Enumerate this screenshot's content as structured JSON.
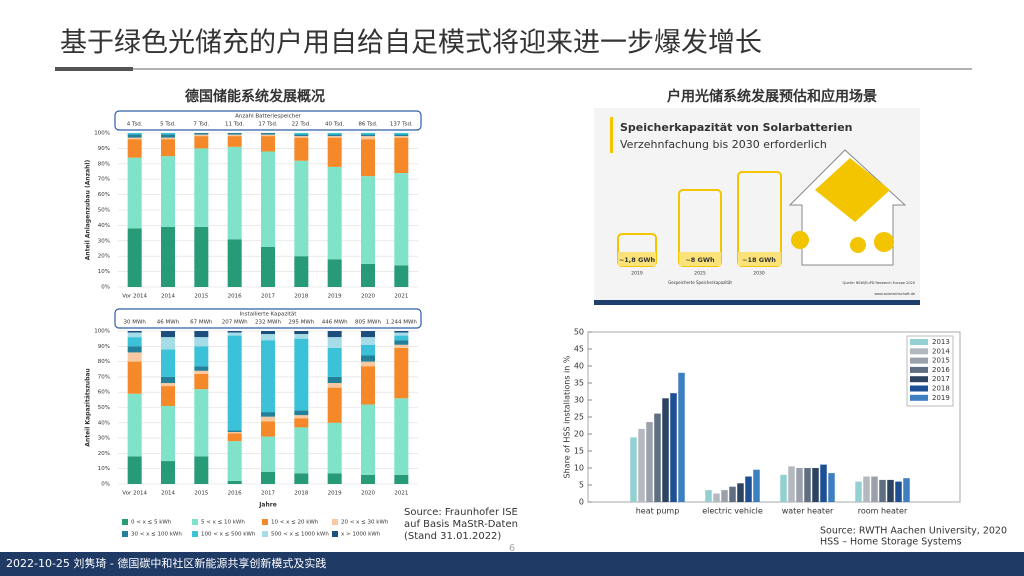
{
  "title": "基于绿色光储充的户用自给自足模式将迎来进一步爆发增长",
  "left_heading": "德国储能系统发展概况",
  "right_heading": "户用光储系统发展预估和应用场景",
  "left_source": [
    "Source: Fraunhofer ISE",
    "auf Basis MaStR-Daten",
    "(Stand 31.01.2022)"
  ],
  "right_source": [
    "Source: RWTH Aachen University, 2020",
    "HSS – Home Storage Systems"
  ],
  "footer": "2022-10-25 刘隽琦 - 德国碳中和社区新能源共享创新模式及实践",
  "page_number": "6",
  "picture": {
    "title": "Speicherkapazität von Solarbatterien",
    "subtitle": "Verzehnfachung bis 2030 erforderlich",
    "batteries": [
      {
        "label": "~1,8 GWh",
        "year": "2019"
      },
      {
        "label": "~8 GWh",
        "year": "2025"
      },
      {
        "label": "~18 GWh",
        "year": "2030"
      }
    ],
    "caption": "Gespeicherte Speicherkapazität",
    "quelle": "Quelle: BSW/EuPD Research Europe 2020",
    "website": "www.solarwirtschaft.de"
  },
  "chart_data": [
    {
      "type": "stacked_bar",
      "y_label": "Anteil Anlagenzubau (Anzahl)",
      "annotation_title": "Anzahl Batteriespeicher",
      "annotations": [
        "4 Tsd.",
        "5 Tsd.",
        "7 Tsd.",
        "11 Tsd.",
        "17 Tsd.",
        "22 Tsd.",
        "40 Tsd.",
        "86 Tsd.",
        "137 Tsd."
      ],
      "categories": [
        "Vor 2014",
        "2014",
        "2015",
        "2016",
        "2017",
        "2018",
        "2019",
        "2020",
        "2021"
      ],
      "ylim": [
        0,
        100
      ],
      "yticks": [
        {
          "value": 0,
          "label": "0%"
        },
        {
          "value": 10,
          "label": "10%"
        },
        {
          "value": 20,
          "label": "20%"
        },
        {
          "value": 30,
          "label": "30%"
        },
        {
          "value": 40,
          "label": "40%"
        },
        {
          "value": 50,
          "label": "50%"
        },
        {
          "value": 60,
          "label": "60%"
        },
        {
          "value": 70,
          "label": "70%"
        },
        {
          "value": 80,
          "label": "80%"
        },
        {
          "value": 90,
          "label": "90%"
        },
        {
          "value": 100,
          "label": "100%"
        }
      ],
      "grid": true,
      "series": [
        {
          "color": "#279a78",
          "values": [
            38,
            39,
            39,
            31,
            26,
            20,
            18,
            15,
            14
          ]
        },
        {
          "color": "#80e2c9",
          "values": [
            46,
            46,
            51,
            60,
            62,
            62,
            60,
            57,
            60
          ]
        },
        {
          "color": "#f5892a",
          "values": [
            12,
            11,
            8,
            7,
            10,
            15,
            19,
            24,
            23
          ]
        },
        {
          "color": "#f8c9a0",
          "values": [
            1,
            1,
            1,
            1,
            1,
            1,
            1,
            2,
            1
          ]
        },
        {
          "color": "#23809a",
          "values": [
            2,
            2,
            1,
            1,
            1,
            1,
            1,
            1,
            1
          ]
        },
        {
          "color": "#3cc2d8",
          "values": [
            1,
            1,
            0,
            0,
            0,
            1,
            1,
            1,
            1
          ]
        }
      ]
    },
    {
      "type": "stacked_bar",
      "y_label": "Anteil Kapazitätszubau",
      "x_label": "Jahre",
      "annotation_title": "Installierte Kapazität",
      "annotations": [
        "30 MWh",
        "46 MWh",
        "67 MWh",
        "207 MWh",
        "232 MWh",
        "295 MWh",
        "446 MWh",
        "805 MWh",
        "1.244 MWh"
      ],
      "categories": [
        "Vor 2014",
        "2014",
        "2015",
        "2016",
        "2017",
        "2018",
        "2019",
        "2020",
        "2021"
      ],
      "ylim": [
        0,
        100
      ],
      "yticks": [
        {
          "value": 0,
          "label": "0%"
        },
        {
          "value": 10,
          "label": "10%"
        },
        {
          "value": 20,
          "label": "20%"
        },
        {
          "value": 30,
          "label": "30%"
        },
        {
          "value": 40,
          "label": "40%"
        },
        {
          "value": 50,
          "label": "50%"
        },
        {
          "value": 60,
          "label": "60%"
        },
        {
          "value": 70,
          "label": "70%"
        },
        {
          "value": 80,
          "label": "80%"
        },
        {
          "value": 90,
          "label": "90%"
        },
        {
          "value": 100,
          "label": "100%"
        }
      ],
      "grid": true,
      "series": [
        {
          "name": "0 < x ≤ 5 kWh",
          "color": "#279a78",
          "values": [
            18,
            15,
            18,
            2,
            8,
            7,
            7,
            6,
            6
          ]
        },
        {
          "name": "5 < x ≤ 10 kWh",
          "color": "#80e2c9",
          "values": [
            41,
            36,
            44,
            26,
            23,
            30,
            33,
            46,
            50
          ]
        },
        {
          "name": "10 < x ≤ 20 kWh",
          "color": "#f5892a",
          "values": [
            21,
            13,
            10,
            5,
            10,
            6,
            23,
            25,
            33
          ]
        },
        {
          "name": "20 < x ≤ 30 kWh",
          "color": "#f8c9a0",
          "values": [
            6,
            2,
            2,
            1,
            3,
            2,
            3,
            3,
            2
          ]
        },
        {
          "name": "30 < x ≤ 100 kWh",
          "color": "#23809a",
          "values": [
            4,
            4,
            3,
            1,
            3,
            3,
            4,
            4,
            3
          ]
        },
        {
          "name": "100 < x ≤ 500 kWh",
          "color": "#3cc2d8",
          "values": [
            6,
            18,
            13,
            62,
            47,
            47,
            19,
            7,
            3
          ]
        },
        {
          "name": "500 < x ≤ 1000 kWh",
          "color": "#a6dbe8",
          "values": [
            3,
            8,
            6,
            2,
            4,
            3,
            7,
            5,
            2
          ]
        },
        {
          "name": "x > 1000 kWh",
          "color": "#1d4f7e",
          "values": [
            1,
            4,
            4,
            1,
            2,
            2,
            4,
            4,
            1
          ]
        }
      ]
    },
    {
      "type": "grouped_bar",
      "y_label": "Share of HSS installations in %",
      "categories": [
        "heat pump",
        "electric vehicle",
        "water heater",
        "room heater"
      ],
      "ylim": [
        0,
        50
      ],
      "yticks": [
        0,
        5,
        10,
        15,
        20,
        25,
        30,
        35,
        40,
        45,
        50
      ],
      "grid": false,
      "series": [
        {
          "name": "2013",
          "color": "#93d0d2",
          "values": [
            19,
            3.5,
            8,
            6
          ]
        },
        {
          "name": "2014",
          "color": "#b4b9c0",
          "values": [
            21.5,
            2.5,
            10.5,
            7.5
          ]
        },
        {
          "name": "2015",
          "color": "#9aa1ab",
          "values": [
            23.5,
            3.5,
            10,
            7.5
          ]
        },
        {
          "name": "2016",
          "color": "#5f6e82",
          "values": [
            26,
            4.5,
            10,
            6.5
          ]
        },
        {
          "name": "2017",
          "color": "#2d4461",
          "values": [
            30.5,
            5.5,
            10,
            6.5
          ]
        },
        {
          "name": "2018",
          "color": "#1c4f94",
          "values": [
            32,
            7.5,
            11,
            6
          ]
        },
        {
          "name": "2019",
          "color": "#3e7fc1",
          "values": [
            38,
            9.5,
            8.5,
            7
          ]
        }
      ]
    }
  ]
}
